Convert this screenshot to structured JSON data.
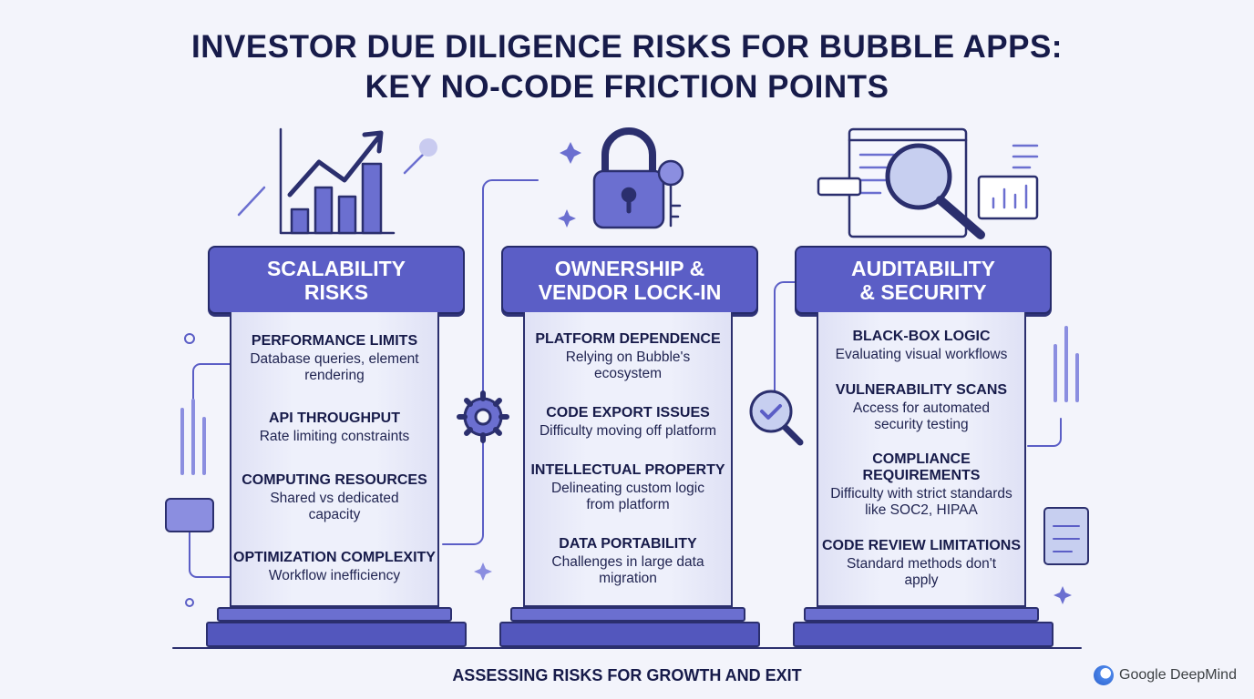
{
  "header": {
    "title_lines": [
      "INVESTOR DUE DILIGENCE RISKS FOR BUBBLE APPS:",
      "KEY NO-CODE FRICTION POINTS"
    ]
  },
  "pillars": [
    {
      "heading_lines": [
        "SCALABILITY",
        "RISKS"
      ],
      "items": [
        {
          "title": "PERFORMANCE LIMITS",
          "description": "Database queries, element rendering"
        },
        {
          "title": "API THROUGHPUT",
          "description": "Rate limiting constraints"
        },
        {
          "title": "COMPUTING RESOURCES",
          "description": "Shared vs dedicated capacity"
        },
        {
          "title": "OPTIMIZATION COMPLEXITY",
          "description": "Workflow inefficiency"
        }
      ]
    },
    {
      "heading_lines": [
        "OWNERSHIP &",
        "VENDOR LOCK-IN"
      ],
      "items": [
        {
          "title": "PLATFORM DEPENDENCE",
          "description": "Relying on Bubble's ecosystem"
        },
        {
          "title": "CODE EXPORT ISSUES",
          "description": "Difficulty moving off platform"
        },
        {
          "title": "INTELLECTUAL PROPERTY",
          "description": "Delineating custom logic from platform"
        },
        {
          "title": "DATA PORTABILITY",
          "description": "Challenges in large data migration"
        }
      ]
    },
    {
      "heading_lines": [
        "AUDITABILITY",
        "& SECURITY"
      ],
      "items": [
        {
          "title": "BLACK-BOX LOGIC",
          "description": "Evaluating visual workflows"
        },
        {
          "title": "VULNERABILITY SCANS",
          "description": "Access for automated security testing"
        },
        {
          "title": "COMPLIANCE REQUIREMENTS",
          "description": "Difficulty with strict standards like SOC2, HIPAA"
        },
        {
          "title": "CODE REVIEW LIMITATIONS",
          "description": "Standard methods don't apply"
        }
      ]
    }
  ],
  "footer": {
    "caption": "ASSESSING RISKS FOR GROWTH AND EXIT"
  },
  "brand": {
    "name": "Google DeepMind"
  }
}
